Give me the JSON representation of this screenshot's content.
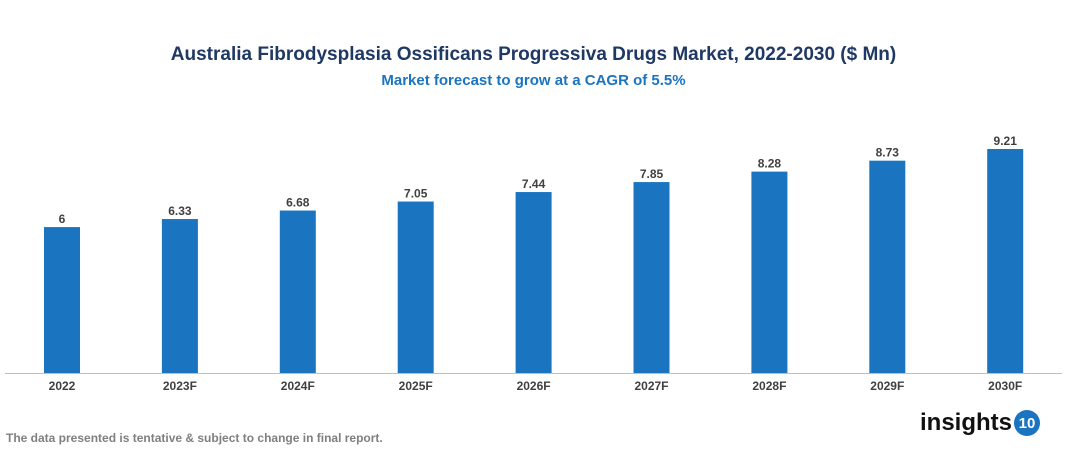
{
  "chart_data": {
    "type": "bar",
    "title": "Australia Fibrodysplasia Ossificans Progressiva Drugs Market, 2022-2030 ($ Mn)",
    "subtitle": "Market forecast to grow at a CAGR of 5.5%",
    "categories": [
      "2022",
      "2023F",
      "2024F",
      "2025F",
      "2026F",
      "2027F",
      "2028F",
      "2029F",
      "2030F"
    ],
    "values": [
      6,
      6.33,
      6.68,
      7.05,
      7.44,
      7.85,
      8.28,
      8.73,
      9.21
    ],
    "value_labels": [
      "6",
      "6.33",
      "6.68",
      "7.05",
      "7.44",
      "7.85",
      "8.28",
      "8.73",
      "9.21"
    ],
    "xlabel": "",
    "ylabel": "",
    "ylim": [
      0,
      9.21
    ],
    "grid": false,
    "bar_color": "#1a74c0"
  },
  "footer": {
    "note": "The data presented is tentative & subject to change in final report."
  },
  "logo": {
    "text": "insights",
    "badge": "10"
  }
}
